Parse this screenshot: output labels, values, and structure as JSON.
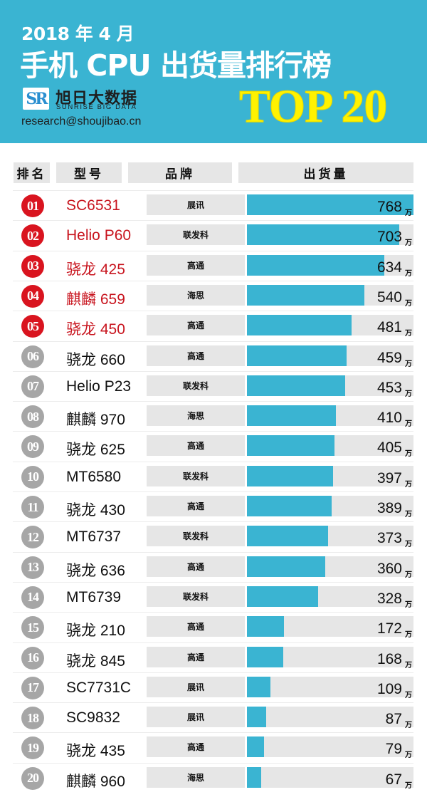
{
  "header": {
    "date": "2018 年 4 月",
    "title": "手机 CPU 出货量排行榜",
    "logo_mark": "SR",
    "brand_cn": "旭日大数据",
    "brand_en": "SUNRISE BIG DATA",
    "email": "research@shoujibao.cn",
    "badge": "TOP 20"
  },
  "columns": {
    "rank": "排名",
    "model": "型号",
    "brand": "品牌",
    "shipments": "出货量"
  },
  "unit": "万",
  "colors": {
    "header_bg": "#3ab4d2",
    "bar": "#3ab4d2",
    "top5_red": "#d9141f",
    "rank_gray": "#a6a6a6",
    "badge_yellow": "#fff200"
  },
  "rows": [
    {
      "rank": "01",
      "model": "SC6531",
      "brand": "展讯",
      "value": "768"
    },
    {
      "rank": "02",
      "model": "Helio P60",
      "brand": "联发科",
      "value": "703"
    },
    {
      "rank": "03",
      "model": "骁龙 425",
      "brand": "高通",
      "value": "634"
    },
    {
      "rank": "04",
      "model": "麒麟 659",
      "brand": "海思",
      "value": "540"
    },
    {
      "rank": "05",
      "model": "骁龙 450",
      "brand": "高通",
      "value": "481"
    },
    {
      "rank": "06",
      "model": "骁龙 660",
      "brand": "高通",
      "value": "459"
    },
    {
      "rank": "07",
      "model": "Helio P23",
      "brand": "联发科",
      "value": "453"
    },
    {
      "rank": "08",
      "model": "麒麟 970",
      "brand": "海思",
      "value": "410"
    },
    {
      "rank": "09",
      "model": "骁龙 625",
      "brand": "高通",
      "value": "405"
    },
    {
      "rank": "10",
      "model": "MT6580",
      "brand": "联发科",
      "value": "397"
    },
    {
      "rank": "11",
      "model": "骁龙 430",
      "brand": "高通",
      "value": "389"
    },
    {
      "rank": "12",
      "model": "MT6737",
      "brand": "联发科",
      "value": "373"
    },
    {
      "rank": "13",
      "model": "骁龙 636",
      "brand": "高通",
      "value": "360"
    },
    {
      "rank": "14",
      "model": "MT6739",
      "brand": "联发科",
      "value": "328"
    },
    {
      "rank": "15",
      "model": "骁龙 210",
      "brand": "高通",
      "value": "172"
    },
    {
      "rank": "16",
      "model": "骁龙 845",
      "brand": "高通",
      "value": "168"
    },
    {
      "rank": "17",
      "model": "SC7731C",
      "brand": "展讯",
      "value": "109"
    },
    {
      "rank": "18",
      "model": "SC9832",
      "brand": "展讯",
      "value": "87"
    },
    {
      "rank": "19",
      "model": "骁龙 435",
      "brand": "高通",
      "value": "79"
    },
    {
      "rank": "20",
      "model": "麒麟 960",
      "brand": "海思",
      "value": "67"
    }
  ],
  "chart_data": {
    "type": "bar",
    "orientation": "horizontal",
    "title": "2018年4月 手机CPU出货量排行榜 TOP 20",
    "xlabel": "出货量 (万)",
    "ylabel": "型号",
    "categories": [
      "SC6531",
      "Helio P60",
      "骁龙 425",
      "麒麟 659",
      "骁龙 450",
      "骁龙 660",
      "Helio P23",
      "麒麟 970",
      "骁龙 625",
      "MT6580",
      "骁龙 430",
      "MT6737",
      "骁龙 636",
      "MT6739",
      "骁龙 210",
      "骁龙 845",
      "SC7731C",
      "SC9832",
      "骁龙 435",
      "麒麟 960"
    ],
    "brands": [
      "展讯",
      "联发科",
      "高通",
      "海思",
      "高通",
      "高通",
      "联发科",
      "海思",
      "高通",
      "联发科",
      "高通",
      "联发科",
      "高通",
      "联发科",
      "高通",
      "高通",
      "展讯",
      "展讯",
      "高通",
      "海思"
    ],
    "values": [
      768,
      703,
      634,
      540,
      481,
      459,
      453,
      410,
      405,
      397,
      389,
      373,
      360,
      328,
      172,
      168,
      109,
      87,
      79,
      67
    ],
    "unit": "万",
    "xlim": [
      0,
      768
    ],
    "grid": false,
    "legend": "none"
  }
}
